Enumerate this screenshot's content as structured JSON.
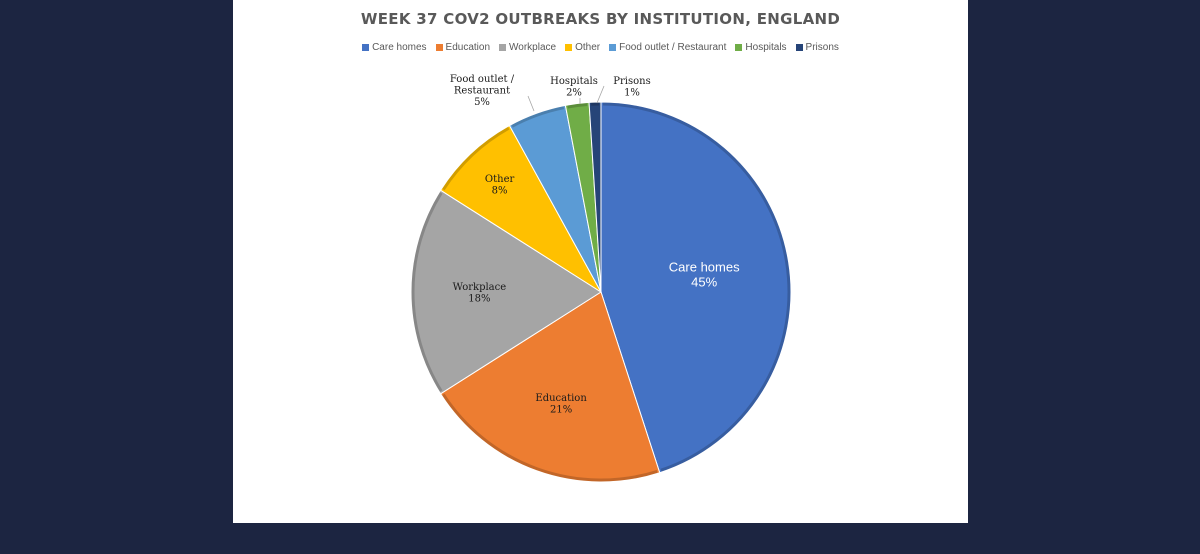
{
  "chart_data": {
    "type": "pie",
    "title": "WEEK 37 COV2 OUTBREAKS BY INSTITUTION, ENGLAND",
    "legend_position": "top",
    "slices": [
      {
        "name": "Care homes",
        "value": 45,
        "label": "45%",
        "color": "#4472c4"
      },
      {
        "name": "Education",
        "value": 21,
        "label": "21%",
        "color": "#ed7d31"
      },
      {
        "name": "Workplace",
        "value": 18,
        "label": "18%",
        "color": "#a5a5a5"
      },
      {
        "name": "Other",
        "value": 8,
        "label": "8%",
        "color": "#ffc000"
      },
      {
        "name": "Food outlet / Restaurant",
        "value": 5,
        "label": "5%",
        "color": "#5b9bd5"
      },
      {
        "name": "Hospitals",
        "value": 2,
        "label": "2%",
        "color": "#70ad47"
      },
      {
        "name": "Prisons",
        "value": 1,
        "label": "1%",
        "color": "#264478"
      }
    ],
    "outside_label_lines": {
      "Food outlet / Restaurant": [
        "Food outlet /",
        "Restaurant"
      ]
    }
  },
  "colors": {
    "page_background": "#1c2541",
    "panel_background": "#ffffff",
    "slice_border": "#ffffff"
  }
}
